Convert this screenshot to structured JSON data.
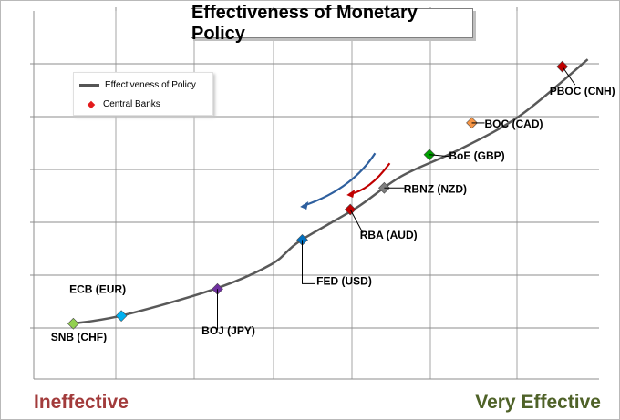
{
  "chart_data": {
    "type": "line",
    "title": "Effectiveness of Monetary Policy",
    "xlabel": "",
    "ylabel": "",
    "grid": true,
    "legend_position": "top-left",
    "x_end_labels": {
      "left": "Ineffective",
      "right": "Very Effective"
    },
    "xlim": [
      0,
      10
    ],
    "ylim": [
      0,
      10
    ],
    "series": [
      {
        "name": "Effectiveness of Policy",
        "color": "#595959",
        "x": [
          0.7,
          1.6,
          3.2,
          4.2,
          4.7,
          5.7,
          6.5,
          7.5,
          8.6,
          9.8
        ],
        "y": [
          0.15,
          0.45,
          1.35,
          2.2,
          3.0,
          4.15,
          5.25,
          6.15,
          7.35,
          9.3
        ]
      },
      {
        "name": "Central Banks",
        "legend_marker_color": "#e31a1c",
        "points": [
          {
            "label": "SNB (CHF)",
            "x": 0.7,
            "y": 0.15,
            "color": "#92d050"
          },
          {
            "label": "ECB (EUR)",
            "x": 1.55,
            "y": 0.42,
            "color": "#00b0f0"
          },
          {
            "label": "BOJ (JPY)",
            "x": 3.25,
            "y": 1.35,
            "color": "#7030a0"
          },
          {
            "label": "FED (USD)",
            "x": 4.75,
            "y": 3.05,
            "color": "#0070c0"
          },
          {
            "label": "RBA (AUD)",
            "x": 5.6,
            "y": 4.1,
            "color": "#c00000"
          },
          {
            "label": "RBNZ (NZD)",
            "x": 6.2,
            "y": 4.85,
            "color": "#7f7f7f"
          },
          {
            "label": "BoE (GBP)",
            "x": 7.0,
            "y": 6.0,
            "color": "#00a000"
          },
          {
            "label": "BOC (CAD)",
            "x": 7.75,
            "y": 7.1,
            "color": "#f79646"
          },
          {
            "label": "PBOC (CNH)",
            "x": 9.35,
            "y": 9.05,
            "color": "#c00000"
          }
        ]
      }
    ],
    "arrows": [
      {
        "color": "#2e5f9e"
      },
      {
        "color": "#c00000"
      }
    ]
  }
}
